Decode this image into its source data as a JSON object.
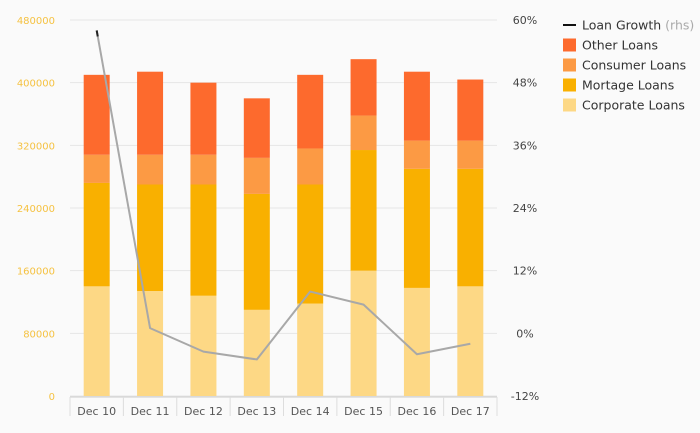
{
  "chart_data": {
    "type": "bar",
    "stacked": true,
    "categories": [
      "Dec 10",
      "Dec 11",
      "Dec 12",
      "Dec 13",
      "Dec 14",
      "Dec 15",
      "Dec 16",
      "Dec 17"
    ],
    "series": [
      {
        "name": "Corporate Loans",
        "color": "#fdd885",
        "values": [
          140000,
          134000,
          128000,
          110000,
          118000,
          160000,
          138000,
          140000
        ]
      },
      {
        "name": "Mortage Loans",
        "color": "#f9b000",
        "values": [
          132000,
          136000,
          142000,
          148000,
          152000,
          154000,
          152000,
          150000
        ]
      },
      {
        "name": "Consumer Loans",
        "color": "#fc9a44",
        "values": [
          36000,
          38000,
          38000,
          46000,
          46000,
          44000,
          36000,
          36000
        ]
      },
      {
        "name": "Other Loans",
        "color": "#fd6a2d",
        "values": [
          102000,
          106000,
          92000,
          76000,
          94000,
          72000,
          88000,
          78000
        ]
      }
    ],
    "line_series": {
      "name": "Loan Growth",
      "axis_note": "(rhs)",
      "color": "#a8a8a8",
      "axis": "right",
      "values": [
        58,
        1,
        -3.5,
        -5,
        8,
        5.5,
        -4,
        -2
      ]
    },
    "y_left": {
      "ticks": [
        "0",
        "80000",
        "160000",
        "240000",
        "320000",
        "400000",
        "480000"
      ],
      "range": [
        0,
        480000
      ]
    },
    "y_right": {
      "ticks": [
        "-12%",
        "0%",
        "12%",
        "24%",
        "36%",
        "48%",
        "60%"
      ],
      "range": [
        -12,
        60
      ]
    },
    "legend": {
      "placement": "right",
      "suffix_color": "#aaaaaa"
    },
    "grid": true
  }
}
